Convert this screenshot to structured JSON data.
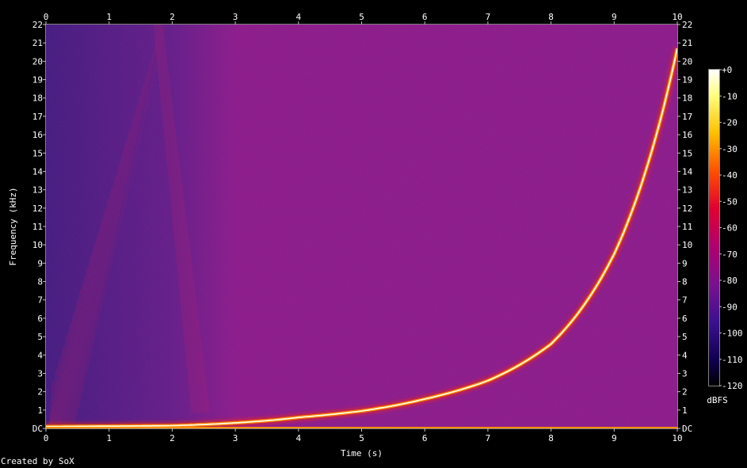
{
  "chart_data": {
    "type": "heatmap",
    "title": "",
    "xlabel": "Time (s)",
    "ylabel": "Frequency (kHz)",
    "xlim": [
      0,
      10
    ],
    "ylim": [
      0,
      22
    ],
    "x_ticks": [
      "0",
      "1",
      "2",
      "3",
      "4",
      "5",
      "6",
      "7",
      "8",
      "9",
      "10"
    ],
    "y_ticks": [
      "DC",
      "1",
      "2",
      "3",
      "4",
      "5",
      "6",
      "7",
      "8",
      "9",
      "10",
      "11",
      "12",
      "13",
      "14",
      "15",
      "16",
      "17",
      "18",
      "19",
      "20",
      "21",
      "22"
    ],
    "colorbar": {
      "label": "dBFS",
      "range": [
        -120,
        0
      ],
      "ticks": [
        "+0",
        "-10",
        "-20",
        "-30",
        "-40",
        "-50",
        "-60",
        "-70",
        "-80",
        "-90",
        "-100",
        "-110",
        "-120"
      ]
    },
    "sweep": {
      "description_visible": false,
      "points": [
        [
          0,
          0.1
        ],
        [
          2,
          0.15
        ],
        [
          3,
          0.3
        ],
        [
          4,
          0.6
        ],
        [
          5,
          0.95
        ],
        [
          6,
          1.6
        ],
        [
          7,
          2.6
        ],
        [
          8,
          4.6
        ],
        [
          9,
          9.5
        ],
        [
          10,
          20.7
        ]
      ]
    },
    "background_color": "#8a1a86",
    "low_color": "#3a1a7a",
    "line_color": "#ffffe0"
  },
  "footer": {
    "credit": "Created by SoX"
  }
}
